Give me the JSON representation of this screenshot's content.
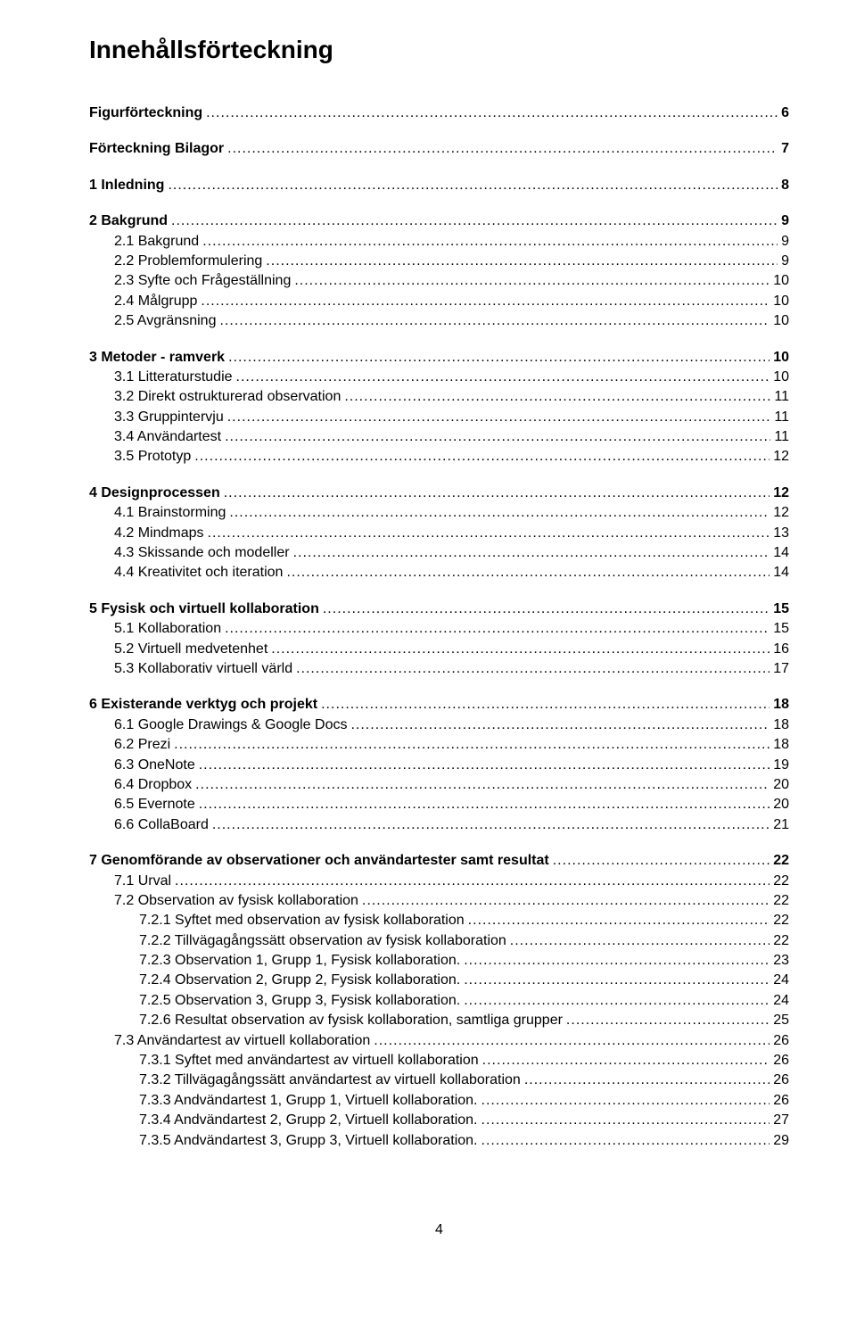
{
  "title": "Innehållsförteckning",
  "page_number": "4",
  "entries": [
    {
      "label": "Figurförteckning",
      "page": "6",
      "bold": true,
      "indent": 0
    },
    {
      "label": "Förteckning Bilagor",
      "page": "7",
      "bold": true,
      "indent": 0
    },
    {
      "label": "1 Inledning",
      "page": "8",
      "bold": true,
      "indent": 0
    },
    {
      "label": "2 Bakgrund",
      "page": "9",
      "bold": true,
      "indent": 0
    },
    {
      "label": "2.1 Bakgrund",
      "page": "9",
      "bold": false,
      "indent": 1
    },
    {
      "label": "2.2 Problemformulering",
      "page": "9",
      "bold": false,
      "indent": 1
    },
    {
      "label": "2.3 Syfte och Frågeställning",
      "page": "10",
      "bold": false,
      "indent": 1
    },
    {
      "label": "2.4 Målgrupp",
      "page": "10",
      "bold": false,
      "indent": 1
    },
    {
      "label": "2.5 Avgränsning",
      "page": "10",
      "bold": false,
      "indent": 1
    },
    {
      "label": "3 Metoder - ramverk",
      "page": "10",
      "bold": true,
      "indent": 0
    },
    {
      "label": "3.1 Litteraturstudie",
      "page": "10",
      "bold": false,
      "indent": 1
    },
    {
      "label": "3.2 Direkt ostrukturerad observation",
      "page": "11",
      "bold": false,
      "indent": 1
    },
    {
      "label": "3.3 Gruppintervju",
      "page": "11",
      "bold": false,
      "indent": 1
    },
    {
      "label": "3.4 Användartest",
      "page": "11",
      "bold": false,
      "indent": 1
    },
    {
      "label": "3.5 Prototyp",
      "page": "12",
      "bold": false,
      "indent": 1
    },
    {
      "label": "4 Designprocessen",
      "page": "12",
      "bold": true,
      "indent": 0
    },
    {
      "label": "4.1 Brainstorming",
      "page": "12",
      "bold": false,
      "indent": 1
    },
    {
      "label": "4.2 Mindmaps",
      "page": "13",
      "bold": false,
      "indent": 1
    },
    {
      "label": "4.3 Skissande och modeller",
      "page": "14",
      "bold": false,
      "indent": 1
    },
    {
      "label": "4.4 Kreativitet och iteration",
      "page": "14",
      "bold": false,
      "indent": 1
    },
    {
      "label": "5 Fysisk och virtuell kollaboration",
      "page": "15",
      "bold": true,
      "indent": 0
    },
    {
      "label": "5.1 Kollaboration",
      "page": "15",
      "bold": false,
      "indent": 1
    },
    {
      "label": "5.2 Virtuell medvetenhet",
      "page": "16",
      "bold": false,
      "indent": 1
    },
    {
      "label": "5.3 Kollaborativ virtuell värld",
      "page": "17",
      "bold": false,
      "indent": 1
    },
    {
      "label": "6 Existerande verktyg och projekt",
      "page": "18",
      "bold": true,
      "indent": 0
    },
    {
      "label": "6.1 Google Drawings & Google Docs",
      "page": "18",
      "bold": false,
      "indent": 1
    },
    {
      "label": "6.2 Prezi",
      "page": "18",
      "bold": false,
      "indent": 1
    },
    {
      "label": "6.3 OneNote",
      "page": "19",
      "bold": false,
      "indent": 1
    },
    {
      "label": "6.4 Dropbox",
      "page": "20",
      "bold": false,
      "indent": 1
    },
    {
      "label": "6.5 Evernote",
      "page": "20",
      "bold": false,
      "indent": 1
    },
    {
      "label": "6.6 CollaBoard",
      "page": "21",
      "bold": false,
      "indent": 1
    },
    {
      "label": "7 Genomförande av observationer och användartester samt resultat",
      "page": "22",
      "bold": true,
      "indent": 0
    },
    {
      "label": "7.1 Urval",
      "page": "22",
      "bold": false,
      "indent": 1
    },
    {
      "label": "7.2 Observation av fysisk kollaboration",
      "page": "22",
      "bold": false,
      "indent": 1
    },
    {
      "label": "7.2.1 Syftet med observation av fysisk kollaboration",
      "page": "22",
      "bold": false,
      "indent": 2
    },
    {
      "label": "7.2.2 Tillvägagångssätt observation av fysisk kollaboration",
      "page": "22",
      "bold": false,
      "indent": 2
    },
    {
      "label": "7.2.3 Observation 1, Grupp 1, Fysisk kollaboration.",
      "page": "23",
      "bold": false,
      "indent": 2
    },
    {
      "label": "7.2.4 Observation 2, Grupp 2, Fysisk kollaboration.",
      "page": "24",
      "bold": false,
      "indent": 2
    },
    {
      "label": "7.2.5 Observation 3, Grupp 3, Fysisk kollaboration.",
      "page": "24",
      "bold": false,
      "indent": 2
    },
    {
      "label": "7.2.6 Resultat observation av fysisk kollaboration, samtliga grupper",
      "page": "25",
      "bold": false,
      "indent": 2
    },
    {
      "label": "7.3 Användartest av virtuell kollaboration",
      "page": "26",
      "bold": false,
      "indent": 1
    },
    {
      "label": "7.3.1 Syftet med användartest av virtuell kollaboration",
      "page": "26",
      "bold": false,
      "indent": 2
    },
    {
      "label": "7.3.2 Tillvägagångssätt användartest av virtuell kollaboration",
      "page": "26",
      "bold": false,
      "indent": 2
    },
    {
      "label": "7.3.3 Andvändartest 1, Grupp 1, Virtuell kollaboration.",
      "page": "26",
      "bold": false,
      "indent": 2
    },
    {
      "label": "7.3.4 Andvändartest 2, Grupp 2, Virtuell kollaboration.",
      "page": "27",
      "bold": false,
      "indent": 2
    },
    {
      "label": "7.3.5 Andvändartest 3, Grupp 3, Virtuell kollaboration.",
      "page": "29",
      "bold": false,
      "indent": 2
    }
  ]
}
